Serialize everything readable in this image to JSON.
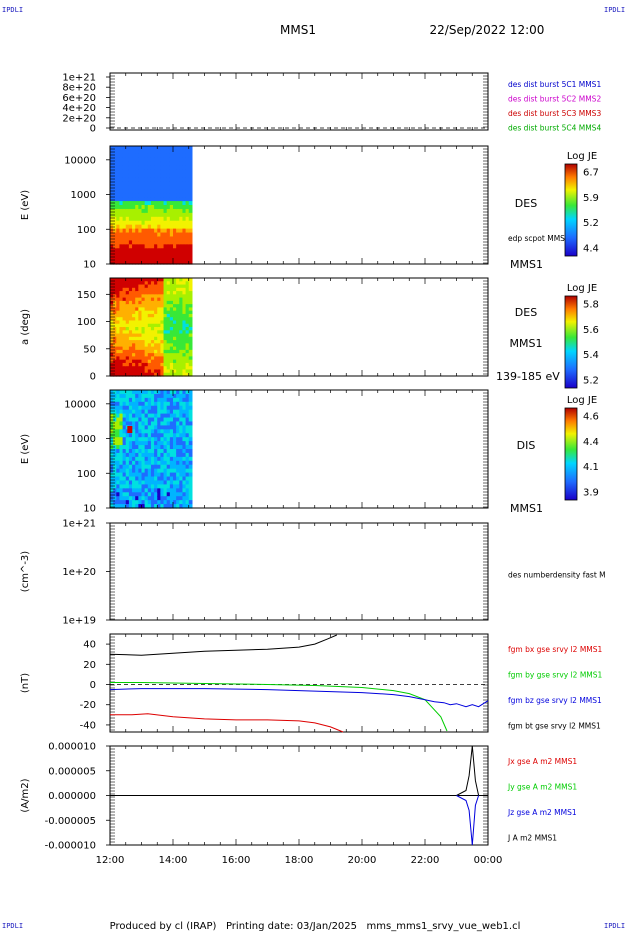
{
  "header": {
    "mission": "MMS1",
    "datetime": "22/Sep/2022 12:00",
    "corner_tl": "IPDLI",
    "corner_tr": "IPDLI",
    "corner_bl": "IPDLI",
    "corner_br": "IPDLI"
  },
  "footer": {
    "text": "Produced by cl (IRAP)   Printing date: 03/Jan/2025   mms_mms1_srvy_vue_web1.cl"
  },
  "colors": {
    "mms1": "#0000cc",
    "mms2": "#cc00cc",
    "mms3": "#cc0000",
    "mms4": "#00aa00",
    "bx": "#dd0000",
    "by": "#00cc00",
    "bz": "#0000dd",
    "bt": "#000000"
  },
  "chart_data": [
    {
      "id": "dist",
      "type": "line",
      "ylabel": "",
      "ylim": [
        0,
        1.1e+21
      ],
      "yticks": [
        "1e+21",
        "8e+20",
        "6e+20",
        "4e+20",
        "2e+20",
        "0"
      ],
      "legend": [
        {
          "name": "des dist burst 5C1 MMS1",
          "color": "mms1"
        },
        {
          "name": "des dist burst 5C2 MMS2",
          "color": "mms2"
        },
        {
          "name": "des dist burst 5C3 MMS3",
          "color": "mms3"
        },
        {
          "name": "des dist burst 5C4 MMS4",
          "color": "mms4"
        }
      ],
      "series": []
    },
    {
      "id": "des_e",
      "type": "heatmap",
      "ylabel": "E (eV)",
      "yscale": "log",
      "ylim": [
        10,
        25000
      ],
      "yticks": [
        "10000",
        "1000",
        "100",
        "10"
      ],
      "data_span_hours": [
        12.0,
        14.6
      ],
      "label": "DES",
      "extra_label": "edp scpot MMS1",
      "bottom_label": "MMS1",
      "colorbar": {
        "title": "Log JE",
        "ticks": [
          "6.7",
          "5.9",
          "5.2",
          "4.4"
        ]
      }
    },
    {
      "id": "des_pa",
      "type": "heatmap",
      "ylabel": "a (deg)",
      "ylim": [
        0,
        180
      ],
      "yticks": [
        "150",
        "100",
        "50",
        "0"
      ],
      "data_span_hours": [
        12.0,
        14.6
      ],
      "label": "DES",
      "extra_label": "MMS1",
      "bottom_label": "139-185 eV",
      "colorbar": {
        "title": "Log JE",
        "ticks": [
          "5.8",
          "5.6",
          "5.4",
          "5.2"
        ]
      }
    },
    {
      "id": "dis_e",
      "type": "heatmap",
      "ylabel": "E (eV)",
      "yscale": "log",
      "ylim": [
        10,
        25000
      ],
      "yticks": [
        "10000",
        "1000",
        "100",
        "10"
      ],
      "data_span_hours": [
        12.0,
        14.6
      ],
      "label": "DIS",
      "bottom_label": "MMS1",
      "colorbar": {
        "title": "Log JE",
        "ticks": [
          "4.6",
          "4.4",
          "4.1",
          "3.9"
        ]
      }
    },
    {
      "id": "density",
      "type": "line",
      "ylabel": "(cm^-3)",
      "yscale": "log",
      "yticks": [
        "1e+21",
        "1e+20",
        "1e+19"
      ],
      "legend": [
        {
          "name": "des numberdensity fast M",
          "color": "bt"
        }
      ],
      "series": []
    },
    {
      "id": "fgm",
      "type": "line",
      "ylabel": "(nT)",
      "ylim": [
        -47,
        50
      ],
      "yticks": [
        "40",
        "20",
        "0",
        "-20",
        "-40"
      ],
      "legend": [
        {
          "name": "fgm bx gse srvy l2 MMS1",
          "color": "bx"
        },
        {
          "name": "fgm by gse srvy l2 MMS1",
          "color": "by"
        },
        {
          "name": "fgm bz gse srvy l2 MMS1",
          "color": "bz"
        },
        {
          "name": "fgm bt gse srvy l2 MMS1",
          "color": "bt"
        }
      ],
      "series": [
        {
          "name": "fgm bt gse srvy l2 MMS1",
          "color": "bt",
          "x": [
            12.0,
            13.0,
            14.0,
            15.0,
            16.0,
            17.0,
            18.0,
            18.5,
            18.9,
            19.2
          ],
          "y": [
            30,
            29,
            31,
            33,
            34,
            35,
            37,
            40,
            45,
            49
          ]
        },
        {
          "name": "fgm by gse srvy l2 MMS1",
          "color": "by",
          "x": [
            12.0,
            13.0,
            15.0,
            17.0,
            18.5,
            20.0,
            21.0,
            21.5,
            22.0,
            22.5,
            22.7
          ],
          "y": [
            2,
            2,
            1,
            0,
            -1,
            -3,
            -6,
            -9,
            -15,
            -32,
            -46
          ]
        },
        {
          "name": "fgm bz gse srvy l2 MMS1",
          "color": "bz",
          "x": [
            12.0,
            13.0,
            15.0,
            17.0,
            18.0,
            20.0,
            21.0,
            21.5,
            22.0,
            22.3,
            22.6,
            22.8,
            23.0,
            23.3,
            23.5,
            23.7,
            24.0
          ],
          "y": [
            -5,
            -4,
            -4,
            -5,
            -6,
            -8,
            -10,
            -12,
            -15,
            -17,
            -18,
            -20,
            -19,
            -22,
            -20,
            -22,
            -16
          ]
        },
        {
          "name": "fgm bx gse srvy l2 MMS1",
          "color": "bx",
          "x": [
            12.0,
            12.7,
            13.2,
            14.0,
            15.0,
            16.0,
            17.0,
            18.0,
            18.5,
            19.0,
            19.4
          ],
          "y": [
            -30,
            -30,
            -29,
            -32,
            -34,
            -35,
            -35,
            -36,
            -38,
            -42,
            -47
          ]
        }
      ]
    },
    {
      "id": "current",
      "type": "line",
      "ylabel": "(A/m2)",
      "ylim": [
        -1e-05,
        1e-05
      ],
      "yticks": [
        "0.000010",
        "0.000005",
        "0.000000",
        "-0.000005",
        "-0.000010"
      ],
      "legend": [
        {
          "name": "Jx gse A m2 MMS1",
          "color": "bx"
        },
        {
          "name": "Jy gse A m2 MMS1",
          "color": "by"
        },
        {
          "name": "Jz gse A m2 MMS1",
          "color": "bz"
        },
        {
          "name": "J A m2 MMS1",
          "color": "bt"
        }
      ],
      "series": [
        {
          "name": "J A m2 MMS1",
          "color": "bt",
          "x": [
            18.5,
            23.0,
            23.3,
            23.4,
            23.5,
            23.6,
            23.7
          ],
          "y": [
            0.0,
            0.0,
            1e-06,
            4e-06,
            1e-05,
            3e-06,
            0.0
          ]
        },
        {
          "name": "Jz gse A m2 MMS1",
          "color": "bz",
          "x": [
            23.0,
            23.3,
            23.4,
            23.5,
            23.6,
            23.7
          ],
          "y": [
            0.0,
            -1e-06,
            -3e-06,
            -1e-05,
            -2e-06,
            0.0
          ]
        }
      ]
    }
  ],
  "time_axis": {
    "range_hours": [
      12,
      24
    ],
    "ticks": [
      "12:00",
      "14:00",
      "16:00",
      "18:00",
      "20:00",
      "22:00",
      "00:00"
    ]
  }
}
